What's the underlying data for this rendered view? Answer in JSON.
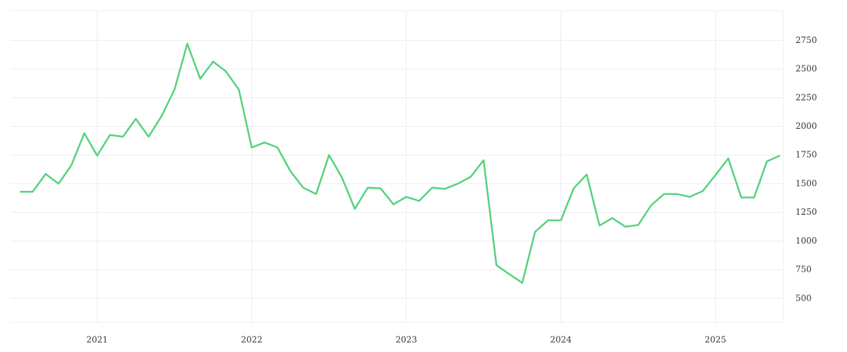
{
  "chart_data": {
    "type": "line",
    "x": [
      2020.5,
      2020.583,
      2020.667,
      2020.75,
      2020.833,
      2020.917,
      2021,
      2021.083,
      2021.167,
      2021.25,
      2021.333,
      2021.417,
      2021.5,
      2021.583,
      2021.667,
      2021.75,
      2021.833,
      2021.917,
      2022,
      2022.083,
      2022.167,
      2022.25,
      2022.333,
      2022.417,
      2022.5,
      2022.583,
      2022.667,
      2022.75,
      2022.833,
      2022.917,
      2023,
      2023.083,
      2023.167,
      2023.25,
      2023.333,
      2023.417,
      2023.5,
      2023.583,
      2023.667,
      2023.75,
      2023.833,
      2023.917,
      2024,
      2024.083,
      2024.167,
      2024.25,
      2024.333,
      2024.417,
      2024.5,
      2024.583,
      2024.667,
      2024.75,
      2024.833,
      2024.917,
      2025,
      2025.083,
      2025.167,
      2025.25,
      2025.333,
      2025.417
    ],
    "series": [
      {
        "color": "#55d27d",
        "values": [
          1430,
          1430,
          1585,
          1500,
          1660,
          1940,
          1745,
          1925,
          1910,
          2065,
          1910,
          2090,
          2320,
          2720,
          2415,
          2565,
          2480,
          2320,
          1815,
          1860,
          1815,
          1610,
          1465,
          1410,
          1750,
          1555,
          1280,
          1465,
          1460,
          1320,
          1385,
          1350,
          1465,
          1455,
          1500,
          1560,
          1705,
          790,
          710,
          635,
          1080,
          1180,
          1180,
          1460,
          1580,
          1135,
          1200,
          1125,
          1140,
          1310,
          1410,
          1410,
          1385,
          1435,
          1575,
          1720,
          1380,
          1380,
          1695,
          1745
        ]
      }
    ],
    "xlim": [
      2020.44,
      2025.44
    ],
    "xticks": [
      2021,
      2022,
      2023,
      2024,
      2025
    ],
    "ylim": [
      290,
      3010
    ],
    "yticks": [
      500,
      750,
      1000,
      1250,
      1500,
      1750,
      2000,
      2250,
      2500,
      2750
    ],
    "grid": true
  }
}
